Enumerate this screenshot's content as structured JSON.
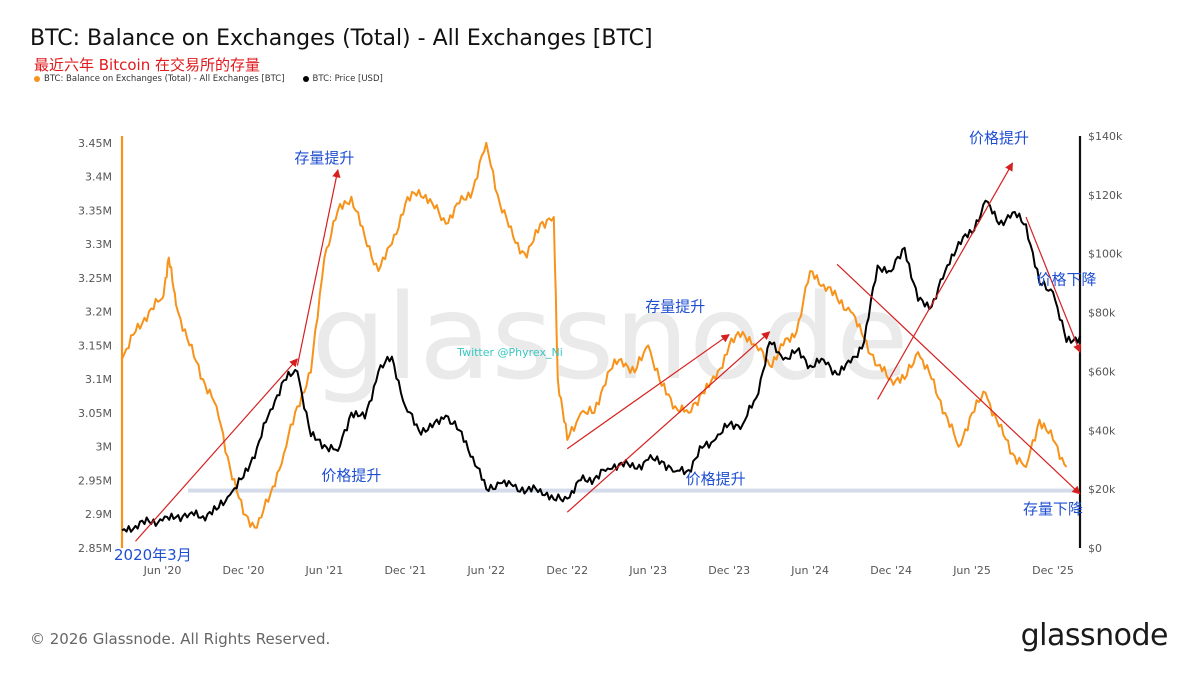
{
  "header": {
    "title": "BTC: Balance on Exchanges (Total) - All Exchanges [BTC]",
    "subtitle": "最近六年 Bitcoin 在交易所的存量"
  },
  "legend": [
    {
      "label": "BTC: Balance on Exchanges (Total) - All Exchanges [BTC]",
      "color": "#f7931a"
    },
    {
      "label": "BTC: Price [USD]",
      "color": "#000000"
    }
  ],
  "footer": {
    "copyright": "© 2026 Glassnode. All Rights Reserved.",
    "brand": "glassnode",
    "watermark": "glassnode",
    "twitter": "Twitter @Phyrex_Ni"
  },
  "chart_data": {
    "type": "line",
    "x_ticks": [
      "Jun '20",
      "Dec '20",
      "Jun '21",
      "Dec '21",
      "Jun '22",
      "Dec '22",
      "Jun '23",
      "Dec '23",
      "Jun '24",
      "Dec '24",
      "Jun '25",
      "Dec '25"
    ],
    "x_range": [
      "2020-03",
      "2026-02"
    ],
    "left_axis": {
      "ticks": [
        "2.85M",
        "2.9M",
        "2.95M",
        "3M",
        "3.05M",
        "3.1M",
        "3.15M",
        "3.2M",
        "3.25M",
        "3.3M",
        "3.35M",
        "3.4M",
        "3.45M"
      ],
      "ylim": [
        2.85,
        3.46
      ]
    },
    "right_axis": {
      "ticks": [
        "$0",
        "$20k",
        "$40k",
        "$60k",
        "$80k",
        "$100k",
        "$120k",
        "$140k"
      ],
      "ylim": [
        0,
        140000
      ]
    },
    "series": [
      {
        "name": "BTC: Balance on Exchanges (Total) - All Exchanges [BTC]",
        "color": "#f7931a",
        "axis": "left",
        "unit": "M BTC",
        "points": [
          [
            "2020-03",
            3.13
          ],
          [
            "2020-04",
            3.17
          ],
          [
            "2020-05",
            3.2
          ],
          [
            "2020-06",
            3.22
          ],
          [
            "2020-06-15",
            3.28
          ],
          [
            "2020-07",
            3.21
          ],
          [
            "2020-08",
            3.15
          ],
          [
            "2020-09",
            3.1
          ],
          [
            "2020-10",
            3.06
          ],
          [
            "2020-11",
            2.97
          ],
          [
            "2020-12",
            2.9
          ],
          [
            "2021-01",
            2.88
          ],
          [
            "2021-02",
            2.93
          ],
          [
            "2021-03",
            2.99
          ],
          [
            "2021-04",
            3.06
          ],
          [
            "2021-05",
            3.11
          ],
          [
            "2021-06",
            3.28
          ],
          [
            "2021-07",
            3.35
          ],
          [
            "2021-08",
            3.37
          ],
          [
            "2021-09",
            3.31
          ],
          [
            "2021-10",
            3.26
          ],
          [
            "2021-11",
            3.3
          ],
          [
            "2021-12",
            3.36
          ],
          [
            "2022-01",
            3.38
          ],
          [
            "2022-02",
            3.36
          ],
          [
            "2022-03",
            3.33
          ],
          [
            "2022-04",
            3.36
          ],
          [
            "2022-05",
            3.38
          ],
          [
            "2022-06",
            3.45
          ],
          [
            "2022-07",
            3.36
          ],
          [
            "2022-08",
            3.31
          ],
          [
            "2022-09",
            3.28
          ],
          [
            "2022-10",
            3.33
          ],
          [
            "2022-11",
            3.34
          ],
          [
            "2022-11-10",
            3.1
          ],
          [
            "2022-12",
            3.01
          ],
          [
            "2023-01",
            3.05
          ],
          [
            "2023-02",
            3.05
          ],
          [
            "2023-03",
            3.11
          ],
          [
            "2023-04",
            3.13
          ],
          [
            "2023-05",
            3.11
          ],
          [
            "2023-06",
            3.15
          ],
          [
            "2023-07",
            3.09
          ],
          [
            "2023-08",
            3.06
          ],
          [
            "2023-09",
            3.05
          ],
          [
            "2023-10",
            3.08
          ],
          [
            "2023-11",
            3.1
          ],
          [
            "2023-12",
            3.15
          ],
          [
            "2024-01",
            3.17
          ],
          [
            "2024-02",
            3.15
          ],
          [
            "2024-03",
            3.12
          ],
          [
            "2024-04",
            3.15
          ],
          [
            "2024-05",
            3.17
          ],
          [
            "2024-06",
            3.26
          ],
          [
            "2024-07",
            3.24
          ],
          [
            "2024-08",
            3.22
          ],
          [
            "2024-09",
            3.2
          ],
          [
            "2024-10",
            3.16
          ],
          [
            "2024-11",
            3.12
          ],
          [
            "2024-12",
            3.1
          ],
          [
            "2025-01",
            3.1
          ],
          [
            "2025-02",
            3.14
          ],
          [
            "2025-03",
            3.1
          ],
          [
            "2025-04",
            3.05
          ],
          [
            "2025-05",
            3.0
          ],
          [
            "2025-06",
            3.05
          ],
          [
            "2025-07",
            3.08
          ],
          [
            "2025-08",
            3.03
          ],
          [
            "2025-09",
            2.99
          ],
          [
            "2025-10",
            2.97
          ],
          [
            "2025-11",
            3.04
          ],
          [
            "2025-12",
            3.01
          ],
          [
            "2026-01",
            2.97
          ]
        ]
      },
      {
        "name": "BTC: Price [USD]",
        "color": "#000000",
        "axis": "right",
        "unit": "USD",
        "points": [
          [
            "2020-03",
            6000
          ],
          [
            "2020-04",
            7500
          ],
          [
            "2020-05",
            9000
          ],
          [
            "2020-06",
            9300
          ],
          [
            "2020-07",
            10500
          ],
          [
            "2020-08",
            11600
          ],
          [
            "2020-09",
            10800
          ],
          [
            "2020-10",
            13000
          ],
          [
            "2020-11",
            18000
          ],
          [
            "2020-12",
            24000
          ],
          [
            "2021-01",
            34000
          ],
          [
            "2021-02",
            47000
          ],
          [
            "2021-03",
            57000
          ],
          [
            "2021-04",
            60000
          ],
          [
            "2021-05",
            38000
          ],
          [
            "2021-06",
            35000
          ],
          [
            "2021-07",
            33000
          ],
          [
            "2021-08",
            46000
          ],
          [
            "2021-09",
            44000
          ],
          [
            "2021-10",
            60000
          ],
          [
            "2021-11",
            65000
          ],
          [
            "2021-12",
            48000
          ],
          [
            "2022-01",
            40000
          ],
          [
            "2022-02",
            41000
          ],
          [
            "2022-03",
            45000
          ],
          [
            "2022-04",
            40000
          ],
          [
            "2022-05",
            31000
          ],
          [
            "2022-06",
            20000
          ],
          [
            "2022-07",
            22000
          ],
          [
            "2022-08",
            21000
          ],
          [
            "2022-09",
            19500
          ],
          [
            "2022-10",
            20000
          ],
          [
            "2022-11",
            16500
          ],
          [
            "2022-12",
            16800
          ],
          [
            "2023-01",
            23000
          ],
          [
            "2023-02",
            23500
          ],
          [
            "2023-03",
            27000
          ],
          [
            "2023-04",
            29000
          ],
          [
            "2023-05",
            27000
          ],
          [
            "2023-06",
            30000
          ],
          [
            "2023-07",
            29500
          ],
          [
            "2023-08",
            26000
          ],
          [
            "2023-09",
            26500
          ],
          [
            "2023-10",
            34000
          ],
          [
            "2023-11",
            37000
          ],
          [
            "2023-12",
            42000
          ],
          [
            "2024-01",
            42000
          ],
          [
            "2024-02",
            51000
          ],
          [
            "2024-03",
            70000
          ],
          [
            "2024-04",
            64000
          ],
          [
            "2024-05",
            67000
          ],
          [
            "2024-06",
            62000
          ],
          [
            "2024-07",
            64000
          ],
          [
            "2024-08",
            59000
          ],
          [
            "2024-09",
            63000
          ],
          [
            "2024-10",
            70000
          ],
          [
            "2024-11",
            96000
          ],
          [
            "2024-12",
            94000
          ],
          [
            "2025-01",
            102000
          ],
          [
            "2025-02",
            84000
          ],
          [
            "2025-03",
            82000
          ],
          [
            "2025-04",
            94000
          ],
          [
            "2025-05",
            104000
          ],
          [
            "2025-06",
            107000
          ],
          [
            "2025-07",
            118000
          ],
          [
            "2025-08",
            110000
          ],
          [
            "2025-09",
            114000
          ],
          [
            "2025-10",
            110000
          ],
          [
            "2025-11",
            90000
          ],
          [
            "2025-12",
            87000
          ],
          [
            "2026-01",
            70000
          ],
          [
            "2026-02",
            72000
          ]
        ]
      }
    ],
    "annotations": [
      {
        "text": "存量提升",
        "x": "2021-06",
        "y_left": 3.42
      },
      {
        "text": "价格提升",
        "x": "2021-08",
        "y_left": 2.95
      },
      {
        "text": "存量提升",
        "x": "2023-08",
        "y_left": 3.2
      },
      {
        "text": "价格提升",
        "x": "2023-11",
        "y_left": 2.945
      },
      {
        "text": "价格提升",
        "x": "2025-08",
        "y_left": 3.45
      },
      {
        "text": "价格下降",
        "x": "2026-01",
        "y_left": 3.24
      },
      {
        "text": "存量下降",
        "x": "2025-12",
        "y_left": 2.9
      },
      {
        "text": "2020年3月",
        "x": "2020-03",
        "y_left": 2.84
      }
    ],
    "trend_arrows": [
      {
        "from": [
          "2020-04",
          2.86
        ],
        "to": [
          "2021-04",
          3.13
        ],
        "axis": "left"
      },
      {
        "from": [
          "2021-04",
          3.12
        ],
        "to": [
          "2021-07",
          3.41
        ],
        "axis": "left"
      },
      {
        "from": [
          "2022-12",
          2.997
        ],
        "to": [
          "2023-12",
          3.166
        ],
        "axis": "left"
      },
      {
        "from": [
          "2022-12",
          2.903
        ],
        "to": [
          "2024-03",
          3.17
        ],
        "axis": "left"
      },
      {
        "from": [
          "2024-08",
          3.27
        ],
        "to": [
          "2026-02",
          2.93
        ],
        "axis": "left"
      },
      {
        "from": [
          "2024-11",
          3.07
        ],
        "to": [
          "2025-09",
          3.42
        ],
        "axis": "left"
      },
      {
        "from": [
          "2025-10",
          3.34
        ],
        "to": [
          "2026-02",
          3.14
        ],
        "axis": "left"
      }
    ],
    "reference_band": {
      "axis": "left",
      "value": 2.935
    },
    "grid": false
  }
}
